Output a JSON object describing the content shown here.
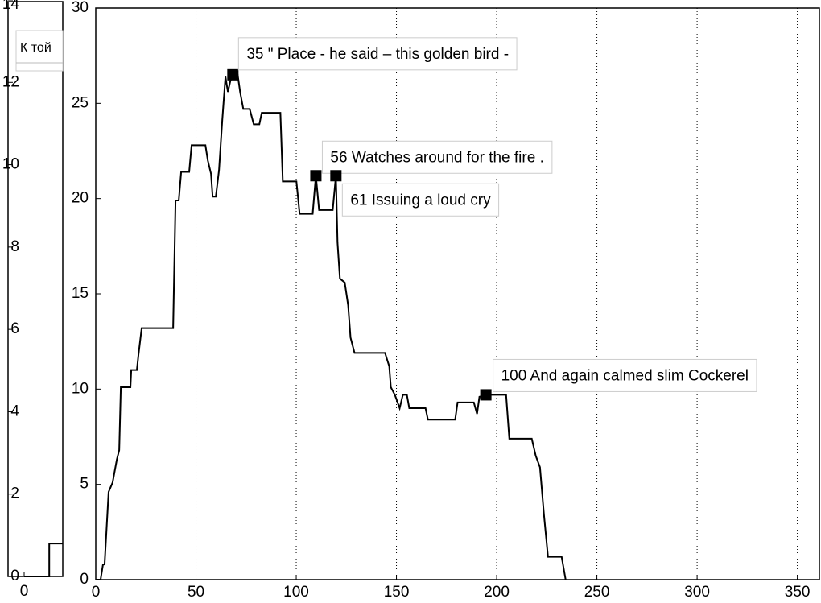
{
  "chart_data": [
    {
      "type": "line",
      "xlim": [
        0,
        20
      ],
      "ylim": [
        0,
        14
      ],
      "xticks": [
        0
      ],
      "yticks": [
        0,
        2,
        4,
        6,
        8,
        10,
        12,
        14
      ],
      "series": [
        {
          "name": "К той",
          "color": "#000000",
          "x": [
            0,
            13,
            13,
            20
          ],
          "values": [
            0,
            0,
            0.8,
            0.8
          ]
        }
      ]
    },
    {
      "type": "line",
      "xlim": [
        0,
        361
      ],
      "ylim": [
        0,
        30
      ],
      "xticks": [
        0,
        50,
        100,
        150,
        200,
        250,
        300,
        350
      ],
      "yticks": [
        0,
        5,
        10,
        15,
        20,
        25,
        30
      ],
      "grid": "x",
      "series": [
        {
          "color": "#000000",
          "x": [
            0,
            2.4,
            3.6,
            4.4,
            6.4,
            8.4,
            10.5,
            11.7,
            12.5,
            17.3,
            17.7,
            20.5,
            21.3,
            22.9,
            38.6,
            39.8,
            41.4,
            42.6,
            46.6,
            47.8,
            54.7,
            55.9,
            57.5,
            58.3,
            59.9,
            61.5,
            63.1,
            64.7,
            65.9,
            67.2,
            68.4,
            70.8,
            72,
            73.6,
            76.8,
            78.8,
            81.6,
            82.8,
            92.1,
            93.3,
            100.1,
            101.7,
            108.2,
            109.8,
            111.4,
            118.2,
            119.8,
            120.6,
            121.8,
            124.2,
            125.9,
            127.1,
            129.1,
            144.3,
            146.4,
            147.2,
            149.2,
            151.6,
            153.2,
            155.2,
            156.4,
            164.5,
            165.7,
            179.3,
            180.5,
            188.6,
            190.2,
            191.4,
            195.4,
            204.7,
            206.3,
            217.5,
            219.5,
            221.6,
            223.6,
            225.6,
            232.4,
            234.4
          ],
          "values": [
            0,
            0,
            0.8,
            0.8,
            4.6,
            5.1,
            6.3,
            6.8,
            10.1,
            10.1,
            11,
            11,
            11.8,
            13.2,
            13.2,
            19.9,
            19.9,
            21.4,
            21.4,
            22.8,
            22.8,
            22,
            21.3,
            20.1,
            20.1,
            21.5,
            24.1,
            26.4,
            25.6,
            26.2,
            26.5,
            26.5,
            25.6,
            24.7,
            24.7,
            23.9,
            23.9,
            24.5,
            24.5,
            20.9,
            20.9,
            19.2,
            19.2,
            21.2,
            19.4,
            19.4,
            21.2,
            17.7,
            15.8,
            15.6,
            14.4,
            12.7,
            11.9,
            11.9,
            11.2,
            10.1,
            9.7,
            9,
            9.7,
            9.7,
            9,
            9,
            8.4,
            8.4,
            9.3,
            9.3,
            8.7,
            9.6,
            9.7,
            9.7,
            7.4,
            7.4,
            6.5,
            5.9,
            3.4,
            1.2,
            1.2,
            0
          ]
        }
      ],
      "annotations": [
        {
          "x": 68.4,
          "y": 26.5,
          "text": "35 \" Place - he said – this golden bird -"
        },
        {
          "x": 109.8,
          "y": 21.2,
          "text": "56 Watches around for the fire ."
        },
        {
          "x": 119.8,
          "y": 21.2,
          "text": "61 Issuing a loud cry"
        },
        {
          "x": 194.6,
          "y": 9.7,
          "text": "100 And again calmed slim Cockerel"
        }
      ]
    }
  ]
}
